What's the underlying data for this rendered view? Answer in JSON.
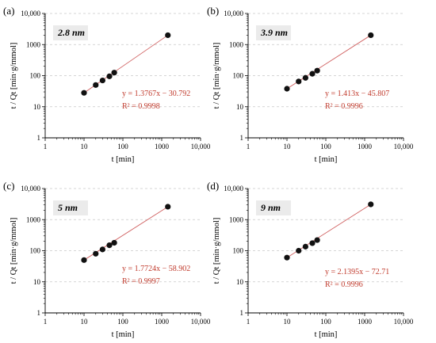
{
  "figure": {
    "panels": [
      {
        "letter": "(a)",
        "size_label": "2.8 nm",
        "equation": "y = 1.3767x − 30.792",
        "r2": "R² = 0.9998"
      },
      {
        "letter": "(b)",
        "size_label": "3.9 nm",
        "equation": "y = 1.413x − 45.807",
        "r2": "R² = 0.9996"
      },
      {
        "letter": "(c)",
        "size_label": "5 nm",
        "equation": "y = 1.7724x − 58.902",
        "r2": "R² = 0.9997"
      },
      {
        "letter": "(d)",
        "size_label": "9 nm",
        "equation": "y = 2.1395x − 72.71",
        "r2": "R² = 0.9996"
      }
    ]
  },
  "colors": {
    "marker": "#111111",
    "fit_line": "#d06060",
    "annotation": "#c0392b",
    "grid": "#c8c8c8",
    "axis": "#000000"
  },
  "chart_data": [
    {
      "type": "scatter",
      "title": "2.8 nm",
      "xlabel": "t [min]",
      "ylabel": "t / Qt [min·g/mmol]",
      "xscale": "log",
      "yscale": "log",
      "xlim": [
        1,
        10000
      ],
      "ylim": [
        1,
        10000
      ],
      "x_ticks": [
        "1",
        "10",
        "100",
        "1000",
        "10,000"
      ],
      "y_ticks": [
        "1",
        "10",
        "100",
        "1000",
        "10,000"
      ],
      "grid": "horizontal dashed",
      "series": [
        {
          "x": [
            10,
            20,
            30,
            45,
            60,
            1440
          ],
          "y": [
            28,
            50,
            70,
            95,
            125,
            2000
          ]
        }
      ],
      "fit": {
        "slope": 1.3767,
        "intercept": -30.792,
        "r2": 0.9998
      }
    },
    {
      "type": "scatter",
      "title": "3.9 nm",
      "xlabel": "t [min]",
      "ylabel": "t / Qt [min·g/mmol]",
      "xscale": "log",
      "yscale": "log",
      "xlim": [
        1,
        10000
      ],
      "ylim": [
        1,
        10000
      ],
      "x_ticks": [
        "1",
        "10",
        "100",
        "1000",
        "10,000"
      ],
      "y_ticks": [
        "1",
        "10",
        "100",
        "1000",
        "10,000"
      ],
      "grid": "horizontal dashed",
      "series": [
        {
          "x": [
            10,
            20,
            30,
            45,
            60,
            1440
          ],
          "y": [
            38,
            65,
            85,
            115,
            145,
            2000
          ]
        }
      ],
      "fit": {
        "slope": 1.413,
        "intercept": -45.807,
        "r2": 0.9996
      }
    },
    {
      "type": "scatter",
      "title": "5 nm",
      "xlabel": "t [min]",
      "ylabel": "t / Qt [min·g/mmol]",
      "xscale": "log",
      "yscale": "log",
      "xlim": [
        1,
        10000
      ],
      "ylim": [
        1,
        10000
      ],
      "x_ticks": [
        "1",
        "10",
        "100",
        "1000",
        "10,000"
      ],
      "y_ticks": [
        "1",
        "10",
        "100",
        "1000",
        "10,000"
      ],
      "grid": "horizontal dashed",
      "series": [
        {
          "x": [
            10,
            20,
            30,
            45,
            60,
            1440
          ],
          "y": [
            50,
            80,
            110,
            150,
            180,
            2600
          ]
        }
      ],
      "fit": {
        "slope": 1.7724,
        "intercept": -58.902,
        "r2": 0.9997
      }
    },
    {
      "type": "scatter",
      "title": "9 nm",
      "xlabel": "t [min]",
      "ylabel": "t / Qt [min·g/mmol]",
      "xscale": "log",
      "yscale": "log",
      "xlim": [
        1,
        10000
      ],
      "ylim": [
        1,
        10000
      ],
      "x_ticks": [
        "1",
        "10",
        "100",
        "1000",
        "10,000"
      ],
      "y_ticks": [
        "1",
        "10",
        "100",
        "1000",
        "10,000"
      ],
      "grid": "horizontal dashed",
      "series": [
        {
          "x": [
            10,
            20,
            30,
            45,
            60,
            1440
          ],
          "y": [
            60,
            100,
            135,
            175,
            220,
            3100
          ]
        }
      ],
      "fit": {
        "slope": 2.1395,
        "intercept": -72.71,
        "r2": 0.9996
      }
    }
  ]
}
